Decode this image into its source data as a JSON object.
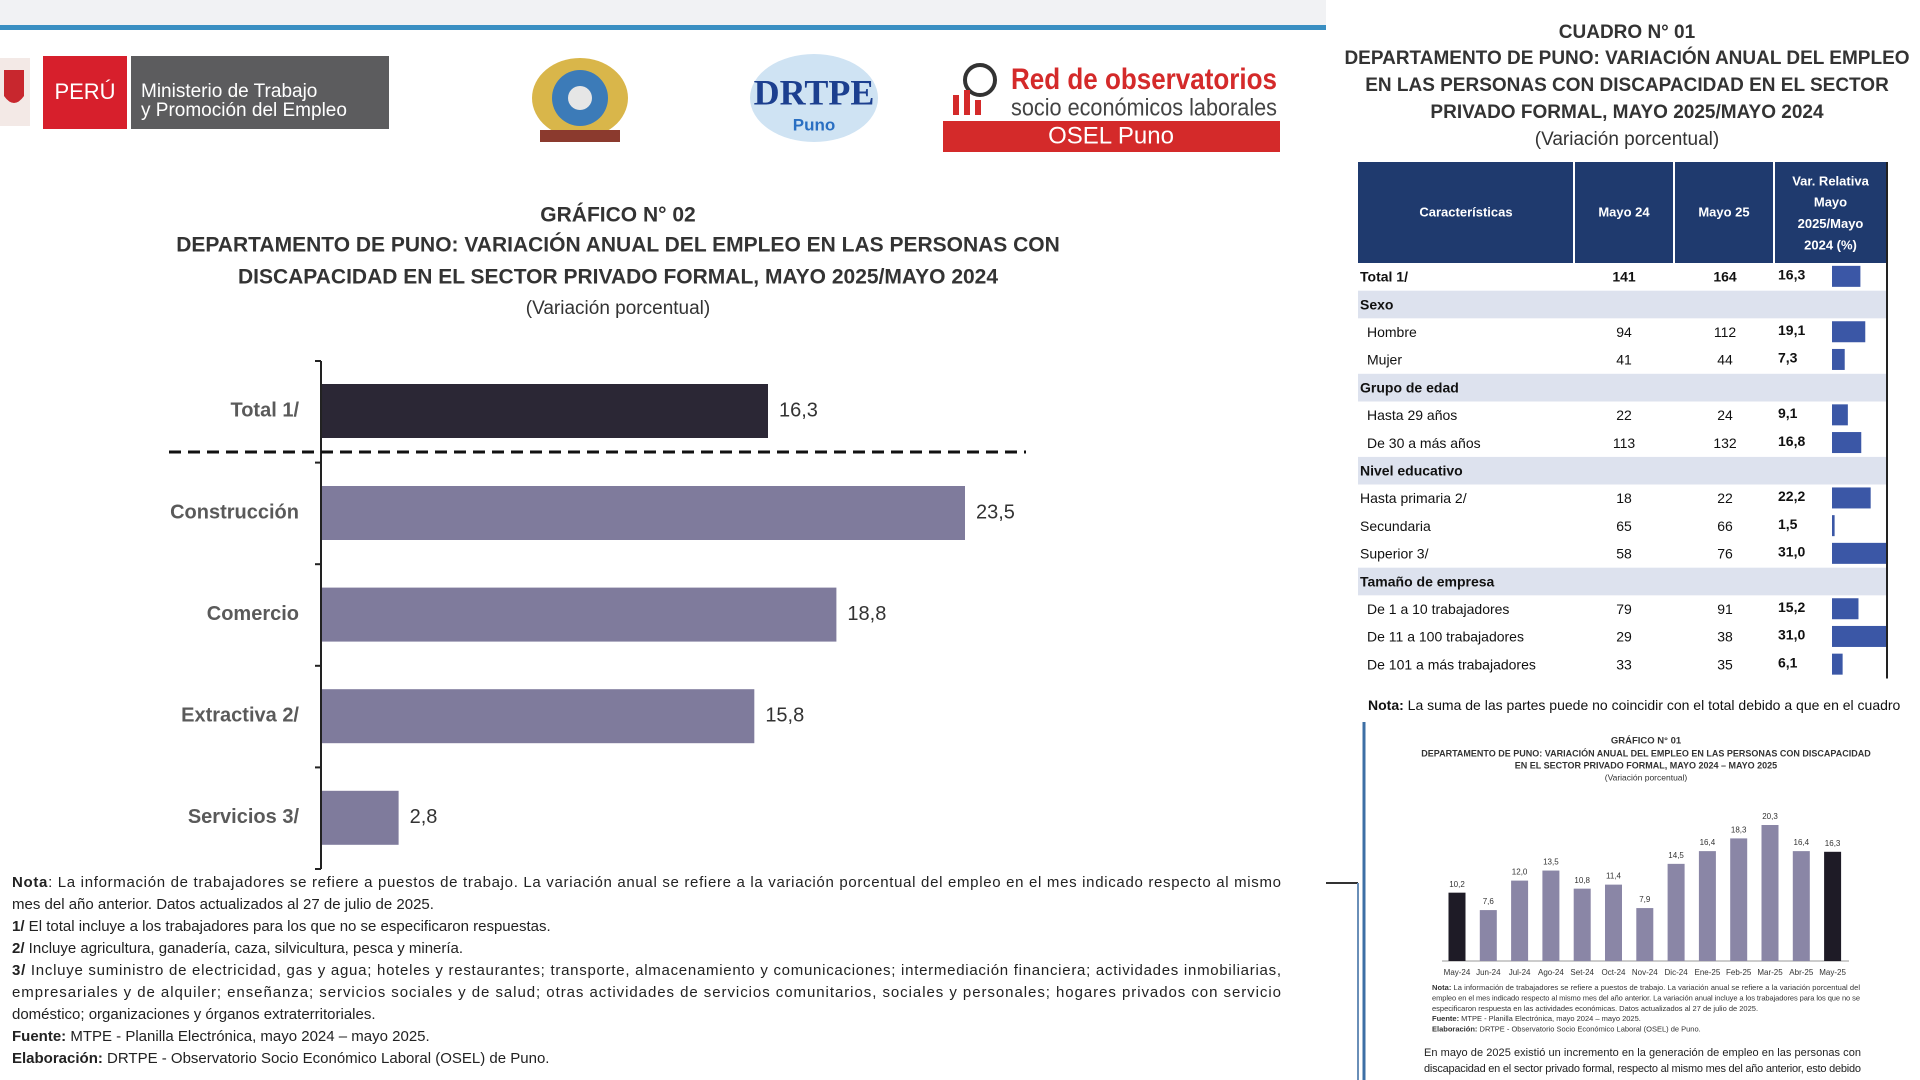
{
  "header": {
    "peru": "PERÚ",
    "ministry": [
      "Ministerio de Trabajo",
      "y Promoción del Empleo"
    ],
    "drtpe": "DRTPE",
    "drtpe_place": "Puno",
    "osel": [
      "Red de observatorios",
      "socio económicos laborales"
    ],
    "osel_name": "OSEL Puno"
  },
  "chart_data": [
    {
      "type": "bar",
      "orientation": "horizontal",
      "label": "GRÁFICO N° 02",
      "title": [
        "DEPARTAMENTO DE PUNO: VARIACIÓN ANUAL DEL EMPLEO EN LAS PERSONAS CON",
        "DISCAPACIDAD EN EL SECTOR PRIVADO FORMAL, MAYO 2025/MAYO 2024"
      ],
      "subtitle": "(Variación porcentual)",
      "categories": [
        "Total 1/",
        "Construcción",
        "Comercio",
        "Extractiva 2/",
        "Servicios 3/"
      ],
      "values": [
        16.3,
        23.5,
        18.8,
        15.8,
        2.8
      ],
      "value_labels": [
        "16,3",
        "23,5",
        "18,8",
        "15,8",
        "2,8"
      ],
      "colors": [
        "#2b2735",
        "#7f7b9c",
        "#7f7b9c",
        "#7f7b9c",
        "#7f7b9c"
      ]
    },
    {
      "type": "column",
      "label": "GRÁFICO N° 01",
      "title": [
        "DEPARTAMENTO DE PUNO: VARIACIÓN ANUAL DEL EMPLEO EN LAS PERSONAS CON DISCAPACIDAD",
        "EN EL SECTOR PRIVADO FORMAL, MAYO 2024 – MAYO 2025"
      ],
      "subtitle": "(Variación porcentual)",
      "categories": [
        "May-24",
        "Jun-24",
        "Jul-24",
        "Ago-24",
        "Set-24",
        "Oct-24",
        "Nov-24",
        "Dic-24",
        "Ene-25",
        "Feb-25",
        "Mar-25",
        "Abr-25",
        "May-25"
      ],
      "values": [
        10.2,
        7.6,
        12.0,
        13.5,
        10.8,
        11.4,
        7.9,
        14.5,
        16.4,
        18.3,
        20.3,
        16.4,
        16.3
      ],
      "value_labels": [
        "10,2",
        "7,6",
        "12,0",
        "13,5",
        "10,8",
        "11,4",
        "7,9",
        "14,5",
        "16,4",
        "18,3",
        "20,3",
        "16,4",
        "16,3"
      ],
      "colors": [
        "#1e1b26",
        "#8a86a6",
        "#8a86a6",
        "#8a86a6",
        "#8a86a6",
        "#8a86a6",
        "#8a86a6",
        "#8a86a6",
        "#8a86a6",
        "#8a86a6",
        "#8a86a6",
        "#8a86a6",
        "#1e1b26"
      ],
      "notes": [
        {
          "b": "Nota:",
          "t": " La información de trabajadores se refiere a puestos de trabajo. La variación anual se refiere a la variación porcentual del"
        },
        {
          "t": "empleo en el mes indicado respecto al mismo mes del año anterior. La variación anual incluye a los trabajadores para los que no se"
        },
        {
          "t": "especificaron respuesta en las actividades económicas. Datos actualizados al 27 de julio de 2025."
        },
        {
          "b": "Fuente:",
          "t": " MTPE - Planilla Electrónica, mayo 2024 – mayo 2025."
        },
        {
          "b": "Elaboración:",
          "t": " DRTPE - Observatorio Socio Económico Laboral (OSEL) de Puno."
        }
      ]
    }
  ],
  "notes": [
    {
      "b": "Nota",
      "t": ": La información de trabajadores se refiere a puestos de trabajo. La variación anual se refiere a la variación porcentual del empleo en el mes indicado respecto al mismo"
    },
    {
      "t": "mes del año anterior. Datos actualizados al 27 de julio de 2025."
    },
    {
      "b": "1/",
      "t": " El total incluye a los trabajadores para los que no se especificaron respuestas."
    },
    {
      "b": "2/",
      "t": " Incluye agricultura, ganadería, caza, silvicultura, pesca y minería."
    },
    {
      "b": "3/",
      "t": " Incluye suministro de electricidad, gas y agua; hoteles y restaurantes; transporte, almacenamiento y comunicaciones; intermediación financiera; actividades inmobiliarias,"
    },
    {
      "t": "empresariales y de alquiler; enseñanza; servicios sociales y de salud; otras actividades de servicios comunitarios, sociales y personales; hogares privados con servicio"
    },
    {
      "t": "doméstico; organizaciones y órganos extraterritoriales."
    },
    {
      "b": "Fuente:",
      "t": " MTPE - Planilla Electrónica, mayo 2024 – mayo 2025."
    },
    {
      "b": "Elaboración:",
      "t": " DRTPE - Observatorio Socio Económico Laboral (OSEL) de Puno."
    }
  ],
  "table": {
    "label": "CUADRO N° 01",
    "title": [
      "DEPARTAMENTO DE PUNO: VARIACIÓN ANUAL DEL EMPLEO",
      "EN LAS PERSONAS CON DISCAPACIDAD EN EL SECTOR",
      "PRIVADO FORMAL, MAYO 2025/MAYO 2024"
    ],
    "subtitle": "(Variación porcentual)",
    "columns": [
      "Características",
      "Mayo 24",
      "Mayo 25",
      [
        "Var. Relativa",
        "Mayo",
        "2025/Mayo",
        "2024 (%)"
      ]
    ],
    "bar_color": "#3b57a6",
    "rows": [
      {
        "label": "Total 1/",
        "may24": 141,
        "may25": 164,
        "var": 16.3,
        "var_label": "16,3"
      },
      {
        "label": "Sexo"
      },
      {
        "label": "Hombre",
        "may24": 94,
        "may25": 112,
        "var": 19.1,
        "var_label": "19,1"
      },
      {
        "label": "Mujer",
        "may24": 41,
        "may25": 44,
        "var": 7.3,
        "var_label": "7,3"
      },
      {
        "label": "Grupo de edad"
      },
      {
        "label": "Hasta 29 años",
        "may24": 22,
        "may25": 24,
        "var": 9.1,
        "var_label": "9,1"
      },
      {
        "label": "De 30 a más años",
        "may24": 113,
        "may25": 132,
        "var": 16.8,
        "var_label": "16,8"
      },
      {
        "label": "Nivel educativo"
      },
      {
        "label": "Hasta primaria 2/",
        "may24": 18,
        "may25": 22,
        "var": 22.2,
        "var_label": "22,2"
      },
      {
        "label": "Secundaria",
        "may24": 65,
        "may25": 66,
        "var": 1.5,
        "var_label": "1,5"
      },
      {
        "label": "Superior 3/",
        "may24": 58,
        "may25": 76,
        "var": 31.0,
        "var_label": "31,0"
      },
      {
        "label": "Tamaño de empresa"
      },
      {
        "label": "De 1 a 10 trabajadores",
        "may24": 79,
        "may25": 91,
        "var": 15.2,
        "var_label": "15,2"
      },
      {
        "label": "De 11 a 100 trabajadores",
        "may24": 29,
        "may25": 38,
        "var": 31.0,
        "var_label": "31,0"
      },
      {
        "label": "De 101 a más trabajadores",
        "may24": 33,
        "may25": 35,
        "var": 6.1,
        "var_label": "6,1"
      }
    ],
    "note": {
      "b": "Nota:",
      "t": " La suma de las partes puede no coincidir con el total debido a que en el cuadro"
    }
  },
  "text": [
    "En mayo de 2025 existió un incremento en la generación de empleo en las personas con",
    "discapacidad en el sector privado formal, respecto al mismo mes del año anterior, esto debido"
  ]
}
